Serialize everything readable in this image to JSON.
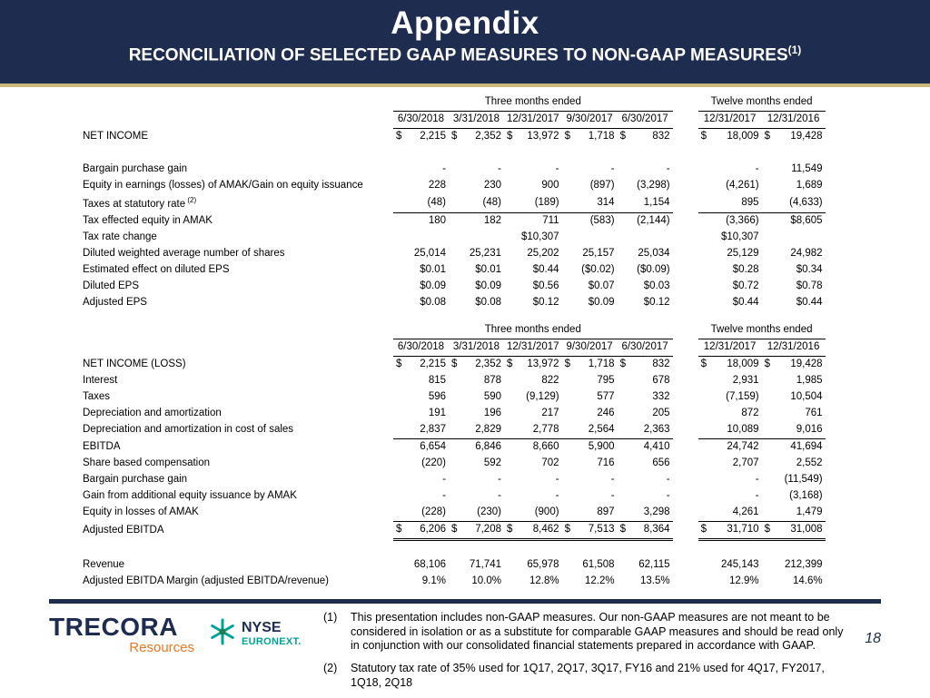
{
  "header": {
    "title": "Appendix",
    "subtitle": "RECONCILIATION OF SELECTED GAAP MEASURES TO NON-GAAP MEASURES",
    "subtitle_sup": "(1)"
  },
  "colors": {
    "navy": "#1e2c4f",
    "gold": "#c9b87a",
    "orange": "#e87722",
    "teal": "#00a39a"
  },
  "tables": [
    {
      "group1": "Three months ended",
      "group2": "Twelve months ended",
      "dates1": [
        "6/30/2018",
        "3/31/2018",
        "12/31/2017",
        "9/30/2017",
        "6/30/2017"
      ],
      "dates2": [
        "12/31/2017",
        "12/31/2016"
      ],
      "rows": [
        {
          "label": "NET INCOME",
          "cells": [
            "$|2,215",
            "$|2,352",
            "$|13,972",
            "$|1,718",
            "$|832",
            "$|18,009",
            "$|19,428"
          ]
        },
        {
          "label": "",
          "cells": [
            "",
            "",
            "",
            "",
            "",
            "",
            ""
          ]
        },
        {
          "label": "Bargain purchase gain",
          "cells": [
            "-",
            "-",
            "-",
            "-",
            "-",
            "-",
            "11,549"
          ]
        },
        {
          "label": "Equity in earnings (losses) of AMAK/Gain on equity issuance",
          "cells": [
            "228",
            "230",
            "900",
            "(897)",
            "(3,298)",
            "(4,261)",
            "1,689"
          ]
        },
        {
          "label": "Taxes at statutory rate",
          "sup": "(2)",
          "border": "bottom",
          "cells": [
            "(48)",
            "(48)",
            "(189)",
            "314",
            "1,154",
            "895",
            "(4,633)"
          ]
        },
        {
          "label": "Tax effected equity in AMAK",
          "cells": [
            "180",
            "182",
            "711",
            "(583)",
            "(2,144)",
            "(3,366)",
            "$8,605"
          ]
        },
        {
          "label": "Tax rate change",
          "cells": [
            "",
            "",
            "$10,307",
            "",
            "",
            "$10,307",
            ""
          ]
        },
        {
          "label": "Diluted weighted average number of shares",
          "cells": [
            "25,014",
            "25,231",
            "25,202",
            "25,157",
            "25,034",
            "25,129",
            "24,982"
          ]
        },
        {
          "label": "Estimated effect on diluted EPS",
          "cells": [
            "$0.01",
            "$0.01",
            "$0.44",
            "($0.02)",
            "($0.09)",
            "$0.28",
            "$0.34"
          ]
        },
        {
          "label": "Diluted EPS",
          "cells": [
            "$0.09",
            "$0.09",
            "$0.56",
            "$0.07",
            "$0.03",
            "$0.72",
            "$0.78"
          ]
        },
        {
          "label": "Adjusted EPS",
          "cells": [
            "$0.08",
            "$0.08",
            "$0.12",
            "$0.09",
            "$0.12",
            "$0.44",
            "$0.44"
          ]
        }
      ]
    },
    {
      "group1": "Three months ended",
      "group2": "Twelve months ended",
      "dates1": [
        "6/30/2018",
        "3/31/2018",
        "12/31/2017",
        "9/30/2017",
        "6/30/2017"
      ],
      "dates2": [
        "12/31/2017",
        "12/31/2016"
      ],
      "rows": [
        {
          "label": "NET INCOME (LOSS)",
          "cells": [
            "$|2,215",
            "$|2,352",
            "$|13,972",
            "$|1,718",
            "$|832",
            "$|18,009",
            "$|19,428"
          ]
        },
        {
          "label": "Interest",
          "cells": [
            "815",
            "878",
            "822",
            "795",
            "678",
            "2,931",
            "1,985"
          ]
        },
        {
          "label": "Taxes",
          "cells": [
            "596",
            "590",
            "(9,129)",
            "577",
            "332",
            "(7,159)",
            "10,504"
          ]
        },
        {
          "label": "Depreciation and amortization",
          "cells": [
            "191",
            "196",
            "217",
            "246",
            "205",
            "872",
            "761"
          ]
        },
        {
          "label": "Depreciation and amortization in cost of sales",
          "border": "bottom",
          "cells": [
            "2,837",
            "2,829",
            "2,778",
            "2,564",
            "2,363",
            "10,089",
            "9,016"
          ]
        },
        {
          "label": "EBITDA",
          "cells": [
            "6,654",
            "6,846",
            "8,660",
            "5,900",
            "4,410",
            "24,742",
            "41,694"
          ]
        },
        {
          "label": "Share based compensation",
          "cells": [
            "(220)",
            "592",
            "702",
            "716",
            "656",
            "2,707",
            "2,552"
          ]
        },
        {
          "label": "Bargain purchase gain",
          "cells": [
            "-",
            "-",
            "-",
            "-",
            "-",
            "-",
            "(11,549)"
          ]
        },
        {
          "label": "Gain from additional equity issuance by AMAK",
          "cells": [
            "-",
            "-",
            "-",
            "-",
            "-",
            "-",
            "(3,168)"
          ]
        },
        {
          "label": "Equity in losses of AMAK",
          "border": "bottom",
          "cells": [
            "(228)",
            "(230)",
            "(900)",
            "897",
            "3,298",
            "4,261",
            "1,479"
          ]
        },
        {
          "label": "Adjusted EBITDA",
          "border": "double",
          "cells": [
            "$|6,206",
            "$|7,208",
            "$|8,462",
            "$|7,513",
            "$|8,364",
            "$|31,710",
            "$|31,008"
          ]
        },
        {
          "label": "",
          "cells": [
            "",
            "",
            "",
            "",
            "",
            "",
            ""
          ]
        },
        {
          "label": "Revenue",
          "cells": [
            "68,106",
            "71,741",
            "65,978",
            "61,508",
            "62,115",
            "245,143",
            "212,399"
          ]
        },
        {
          "label": "Adjusted EBITDA Margin (adjusted EBITDA/revenue)",
          "cells": [
            "9.1%",
            "10.0%",
            "12.8%",
            "12.2%",
            "13.5%",
            "12.9%",
            "14.6%"
          ]
        }
      ]
    }
  ],
  "footer": {
    "trecora": {
      "name": "TRECORA",
      "sub": "Resources"
    },
    "nyse": {
      "line1": "NYSE",
      "line2": "EURONEXT."
    },
    "notes": [
      {
        "num": "(1)",
        "text": "This presentation includes non-GAAP measures.  Our non-GAAP measures are not meant to be considered in isolation or as a substitute for comparable GAAP measures and should be read only in conjunction with our consolidated financial statements prepared in accordance with GAAP."
      },
      {
        "num": "(2)",
        "text": "Statutory tax rate of 35% used for 1Q17, 2Q17, 3Q17, FY16 and 21% used for 4Q17, FY2017, 1Q18, 2Q18"
      }
    ],
    "page": "18"
  }
}
